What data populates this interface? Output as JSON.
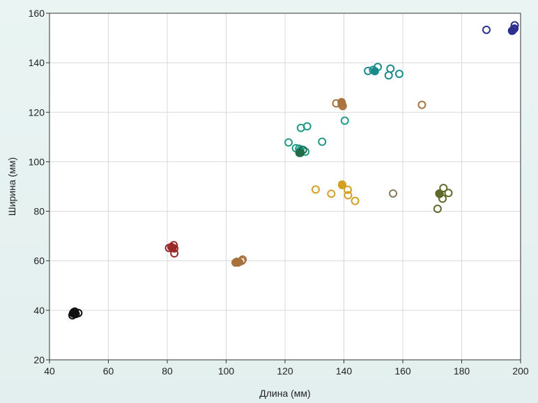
{
  "chart_data": {
    "type": "scatter",
    "title": "",
    "xlabel": "Длина (мм)",
    "ylabel": "Ширина (мм)",
    "xlim": [
      40,
      200
    ],
    "ylim": [
      20,
      160
    ],
    "xticks": [
      40,
      60,
      80,
      100,
      120,
      140,
      160,
      180,
      200
    ],
    "yticks": [
      20,
      40,
      60,
      80,
      100,
      120,
      140,
      160
    ],
    "grid": true,
    "colors": {
      "plot_background": "#ffffff",
      "page_background": "#e6f1f0",
      "gridline": "#d9d9d9",
      "axis": "#333333"
    },
    "series": [
      {
        "name": "black",
        "color": "#111111",
        "points": [
          [
            47.8,
            38.0
          ],
          [
            48.3,
            39.3
          ],
          [
            48.9,
            38.5
          ],
          [
            48.0,
            38.8
          ],
          [
            49.8,
            38.9
          ],
          [
            48.6,
            39.5
          ]
        ],
        "filled": [
          [
            48.4,
            38.6
          ]
        ]
      },
      {
        "name": "dark-red",
        "color": "#9a2a2a",
        "points": [
          [
            80.6,
            65.2
          ],
          [
            81.4,
            65.6
          ],
          [
            82.4,
            63.0
          ],
          [
            82.4,
            65.0
          ],
          [
            82.2,
            66.3
          ]
        ],
        "filled": [
          [
            81.8,
            65.2
          ]
        ]
      },
      {
        "name": "brown",
        "color": "#a8713c",
        "points": [
          [
            103.2,
            59.3
          ],
          [
            104.0,
            59.3
          ],
          [
            104.4,
            59.5
          ],
          [
            105.3,
            60.0
          ],
          [
            105.6,
            60.5
          ],
          [
            103.6,
            59.6
          ]
        ],
        "filled": [
          [
            103.9,
            59.4
          ]
        ]
      },
      {
        "name": "teal-light",
        "color": "#1f9a86",
        "points": [
          [
            121.2,
            107.8
          ],
          [
            123.7,
            105.5
          ],
          [
            125.4,
            113.7
          ],
          [
            127.5,
            114.3
          ],
          [
            126.9,
            104.1
          ],
          [
            132.6,
            108.1
          ],
          [
            140.3,
            116.6
          ],
          [
            124.8,
            105.3
          ]
        ],
        "filled": [
          [
            125.2,
            104.6
          ]
        ]
      },
      {
        "name": "dark-green",
        "color": "#1f6b4a",
        "points": [
          [
            124.9,
            103.6
          ],
          [
            126.1,
            104.8
          ]
        ],
        "filled": [
          [
            125.2,
            103.6
          ]
        ]
      },
      {
        "name": "teal",
        "color": "#1a8a8a",
        "points": [
          [
            148.2,
            136.7
          ],
          [
            151.5,
            138.3
          ],
          [
            155.2,
            134.9
          ],
          [
            155.8,
            137.6
          ],
          [
            158.8,
            135.5
          ],
          [
            149.9,
            137.1
          ]
        ],
        "filled": [
          [
            150.5,
            136.6
          ]
        ]
      },
      {
        "name": "tan",
        "color": "#a8733f",
        "points": [
          [
            137.4,
            123.6
          ],
          [
            139.2,
            124.1
          ],
          [
            139.3,
            123.0
          ],
          [
            139.6,
            122.5
          ],
          [
            166.5,
            123.0
          ]
        ],
        "filled": [
          [
            139.3,
            123.6
          ]
        ]
      },
      {
        "name": "gold",
        "color": "#d4a024",
        "points": [
          [
            130.4,
            88.8
          ],
          [
            135.7,
            87.1
          ],
          [
            139.4,
            90.8
          ],
          [
            141.3,
            88.7
          ],
          [
            141.4,
            86.5
          ],
          [
            143.8,
            84.2
          ]
        ],
        "filled": [
          [
            139.4,
            90.6
          ]
        ]
      },
      {
        "name": "olive-gray",
        "color": "#8a7a5a",
        "points": [
          [
            156.7,
            87.2
          ]
        ],
        "filled": []
      },
      {
        "name": "olive-green",
        "color": "#5e6a2a",
        "points": [
          [
            171.8,
            81.0
          ],
          [
            173.5,
            85.1
          ],
          [
            173.8,
            89.4
          ],
          [
            175.5,
            87.4
          ],
          [
            172.5,
            87.0
          ]
        ],
        "filled": [
          [
            172.4,
            87.2
          ]
        ]
      },
      {
        "name": "navy",
        "color": "#2b2f8f",
        "points": [
          [
            188.4,
            153.3
          ],
          [
            197.6,
            153.5
          ],
          [
            198.0,
            155.1
          ],
          [
            197.1,
            152.9
          ],
          [
            197.9,
            153.8
          ]
        ],
        "filled": [
          [
            197.3,
            153.0
          ]
        ]
      }
    ]
  }
}
